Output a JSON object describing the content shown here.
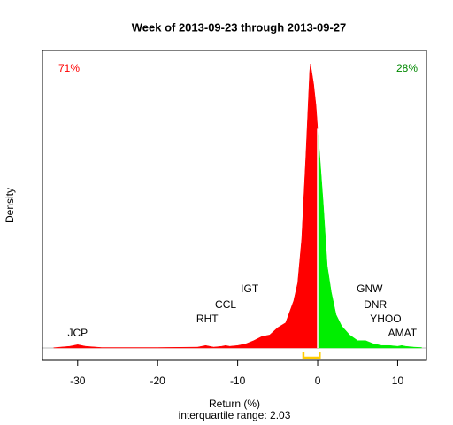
{
  "chart_data": {
    "type": "density",
    "title": "Week of 2013-09-23 through 2013-09-27",
    "x_label": "Return (%)",
    "y_label": "Density",
    "subtitle": "interquartile range: 2.03",
    "xlim": [
      -34.4,
      13.6
    ],
    "ylim": [
      -0.0153,
      0.3664
    ],
    "xticks": [
      -30,
      -20,
      -10,
      0,
      10
    ],
    "series": [
      {
        "color": "#ff0000",
        "x": [
          -33,
          -31,
          -30,
          -29,
          -27,
          -20,
          -15,
          -14,
          -13,
          -12,
          -11.5,
          -11,
          -10,
          -9,
          -8,
          -7,
          -6,
          -5,
          -4,
          -3,
          -2.5,
          -2,
          -1.5,
          -1,
          -0.9,
          -0.5,
          -0.2,
          0
        ],
        "values": [
          0.0003,
          0.002,
          0.004,
          0.002,
          0.0005,
          0.0005,
          0.001,
          0.003,
          0.001,
          0.002,
          0.003,
          0.002,
          0.003,
          0.005,
          0.009,
          0.014,
          0.016,
          0.025,
          0.031,
          0.058,
          0.08,
          0.134,
          0.232,
          0.341,
          0.35,
          0.325,
          0.298,
          0.27
        ]
      },
      {
        "color": "#00ee00",
        "x": [
          0,
          0.3,
          0.7,
          1.2,
          1.7,
          2.3,
          3,
          4,
          5,
          6,
          7,
          8,
          9,
          10,
          10.5,
          11,
          12,
          13
        ],
        "values": [
          0.27,
          0.232,
          0.178,
          0.101,
          0.069,
          0.041,
          0.027,
          0.016,
          0.009,
          0.009,
          0.005,
          0.003,
          0.003,
          0.002,
          0.003,
          0.002,
          0.001,
          0.0005
        ]
      }
    ],
    "share_labels": [
      {
        "text": "71%",
        "color": "#ff0000"
      },
      {
        "text": "28%",
        "color": "#008800"
      }
    ],
    "annotations": [
      {
        "text": "JCP",
        "x": -30
      },
      {
        "text": "RHT",
        "x": -13.8
      },
      {
        "text": "CCL",
        "x": -11.5
      },
      {
        "text": "IGT",
        "x": -8.5
      },
      {
        "text": "GNW",
        "x": 6.5
      },
      {
        "text": "DNR",
        "x": 7.2
      },
      {
        "text": "YHOO",
        "x": 8.5
      },
      {
        "text": "AMAT",
        "x": 10.6
      }
    ],
    "iqr": [
      -1.78,
      0.25
    ],
    "iqr_color": "#ffcc00"
  }
}
